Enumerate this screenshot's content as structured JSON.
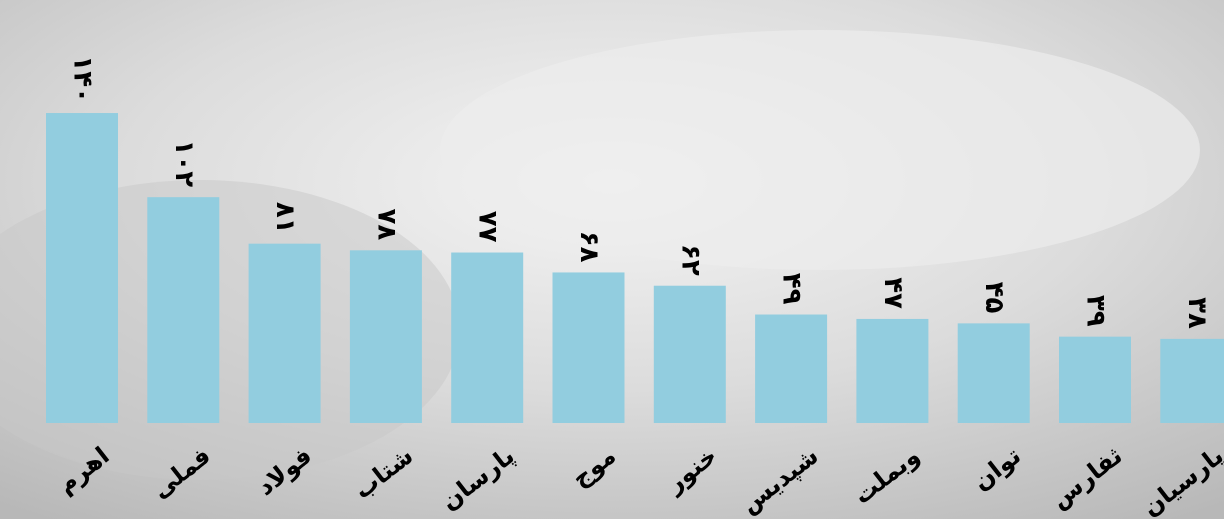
{
  "chart_data": {
    "type": "bar",
    "categories": [
      "اهرم",
      "فملی",
      "فولاد",
      "شتاب",
      "پارسان",
      "موج",
      "خنور",
      "شپدیس",
      "وبملت",
      "توان",
      "ثفارس",
      "پارسیان"
    ],
    "values": [
      140,
      102,
      81,
      78,
      77,
      68,
      62,
      49,
      47,
      45,
      39,
      38
    ],
    "value_labels": [
      "۱۴۰",
      "۱۰۲",
      "۸۱",
      "۷۸",
      "۷۷",
      "۶۸",
      "۶۲",
      "۴۹",
      "۴۷",
      "۴۵",
      "۳۹",
      "۳۸"
    ],
    "color": "#92cddf"
  }
}
